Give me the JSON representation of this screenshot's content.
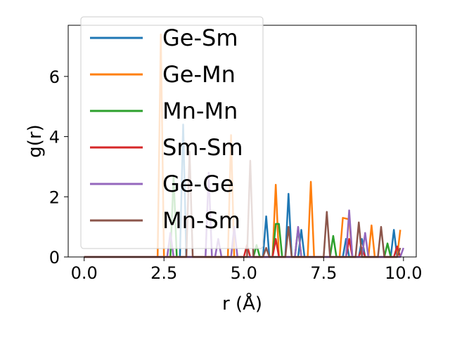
{
  "chart_data": {
    "type": "line",
    "xlabel": "r (Å)",
    "ylabel": "g(r)",
    "xlim": [
      -0.5,
      10.4
    ],
    "ylim": [
      0,
      7.7
    ],
    "x_ticks": [
      0.0,
      2.5,
      5.0,
      7.5,
      10.0
    ],
    "x_tick_labels": [
      "0.0",
      "2.5",
      "5.0",
      "7.5",
      "10.0"
    ],
    "y_ticks": [
      0,
      2,
      4,
      6
    ],
    "y_tick_labels": [
      "0",
      "2",
      "4",
      "6"
    ],
    "grid": false,
    "legend_position": "top-left",
    "series": [
      {
        "name": "Ge-Sm",
        "color": "#1f77b4",
        "points": [
          [
            0,
            0
          ],
          [
            3.0,
            0
          ],
          [
            3.1,
            4.4
          ],
          [
            3.2,
            0
          ],
          [
            5.6,
            0
          ],
          [
            5.7,
            1.35
          ],
          [
            5.8,
            0
          ],
          [
            6.3,
            0
          ],
          [
            6.4,
            2.1
          ],
          [
            6.5,
            0
          ],
          [
            6.7,
            0
          ],
          [
            6.8,
            0.9
          ],
          [
            6.9,
            0
          ],
          [
            8.1,
            0
          ],
          [
            8.2,
            0.6
          ],
          [
            8.3,
            0
          ],
          [
            8.6,
            0
          ],
          [
            8.7,
            0.6
          ],
          [
            8.8,
            0
          ],
          [
            9.6,
            0
          ],
          [
            9.7,
            0.9
          ],
          [
            9.8,
            0
          ]
        ]
      },
      {
        "name": "Ge-Mn",
        "color": "#ff7f0e",
        "points": [
          [
            0,
            0
          ],
          [
            2.3,
            0
          ],
          [
            2.4,
            7.4
          ],
          [
            2.5,
            0
          ],
          [
            4.5,
            0
          ],
          [
            4.6,
            4.05
          ],
          [
            4.7,
            0
          ],
          [
            5.9,
            0
          ],
          [
            6.0,
            2.4
          ],
          [
            6.1,
            0
          ],
          [
            7.0,
            0
          ],
          [
            7.1,
            2.5
          ],
          [
            7.2,
            0
          ],
          [
            8.0,
            0
          ],
          [
            8.1,
            1.3
          ],
          [
            8.3,
            1.25
          ],
          [
            8.4,
            0
          ],
          [
            8.9,
            0
          ],
          [
            9.0,
            1.05
          ],
          [
            9.1,
            0
          ],
          [
            9.8,
            0
          ],
          [
            9.9,
            0.9
          ]
        ]
      },
      {
        "name": "Mn-Mn",
        "color": "#2ca02c",
        "points": [
          [
            0,
            0
          ],
          [
            2.7,
            0
          ],
          [
            2.8,
            2.7
          ],
          [
            2.9,
            0
          ],
          [
            5.3,
            0
          ],
          [
            5.4,
            0.4
          ],
          [
            5.5,
            0
          ],
          [
            5.9,
            0
          ],
          [
            6.0,
            1.1
          ],
          [
            6.1,
            1.1
          ],
          [
            6.2,
            0
          ],
          [
            6.6,
            0
          ],
          [
            6.7,
            0.95
          ],
          [
            6.8,
            0
          ],
          [
            7.7,
            0
          ],
          [
            7.8,
            0.7
          ],
          [
            7.9,
            0
          ],
          [
            9.4,
            0
          ],
          [
            9.5,
            0.45
          ],
          [
            9.6,
            0
          ]
        ]
      },
      {
        "name": "Sm-Sm",
        "color": "#d62728",
        "points": [
          [
            0,
            0
          ],
          [
            5.0,
            0
          ],
          [
            5.1,
            0.4
          ],
          [
            5.2,
            0
          ],
          [
            5.9,
            0
          ],
          [
            6.0,
            0.6
          ],
          [
            6.1,
            0
          ],
          [
            8.2,
            0
          ],
          [
            8.3,
            0.6
          ],
          [
            8.4,
            0
          ],
          [
            8.6,
            0
          ],
          [
            8.7,
            0.3
          ],
          [
            8.8,
            0
          ],
          [
            9.7,
            0
          ],
          [
            9.8,
            0.35
          ],
          [
            9.9,
            0
          ]
        ]
      },
      {
        "name": "Ge-Ge",
        "color": "#9467bd",
        "points": [
          [
            0,
            0
          ],
          [
            2.6,
            0
          ],
          [
            2.7,
            0.8
          ],
          [
            2.8,
            0
          ],
          [
            3.8,
            0
          ],
          [
            3.9,
            2.8
          ],
          [
            4.0,
            0
          ],
          [
            4.1,
            0
          ],
          [
            4.2,
            0.6
          ],
          [
            4.3,
            0
          ],
          [
            4.6,
            0
          ],
          [
            4.7,
            1.0
          ],
          [
            4.8,
            0
          ],
          [
            6.6,
            0
          ],
          [
            6.7,
            1.0
          ],
          [
            6.8,
            0
          ],
          [
            8.2,
            0
          ],
          [
            8.3,
            1.55
          ],
          [
            8.4,
            0
          ],
          [
            8.7,
            0
          ],
          [
            8.8,
            0.8
          ],
          [
            8.9,
            0
          ],
          [
            9.9,
            0
          ],
          [
            10.0,
            0.3
          ]
        ]
      },
      {
        "name": "Mn-Sm",
        "color": "#8c564b",
        "points": [
          [
            0,
            0
          ],
          [
            3.2,
            0
          ],
          [
            3.3,
            3.5
          ],
          [
            3.4,
            0
          ],
          [
            5.1,
            0
          ],
          [
            5.2,
            3.2
          ],
          [
            5.3,
            0
          ],
          [
            5.6,
            0
          ],
          [
            5.7,
            0.3
          ],
          [
            5.8,
            0
          ],
          [
            6.3,
            0
          ],
          [
            6.4,
            1.0
          ],
          [
            6.5,
            0
          ],
          [
            7.5,
            0
          ],
          [
            7.6,
            1.5
          ],
          [
            7.7,
            0
          ],
          [
            8.5,
            0
          ],
          [
            8.6,
            1.15
          ],
          [
            8.7,
            0
          ],
          [
            9.2,
            0
          ],
          [
            9.3,
            1.0
          ],
          [
            9.4,
            0
          ],
          [
            9.8,
            0
          ],
          [
            9.9,
            0.3
          ]
        ]
      }
    ]
  }
}
